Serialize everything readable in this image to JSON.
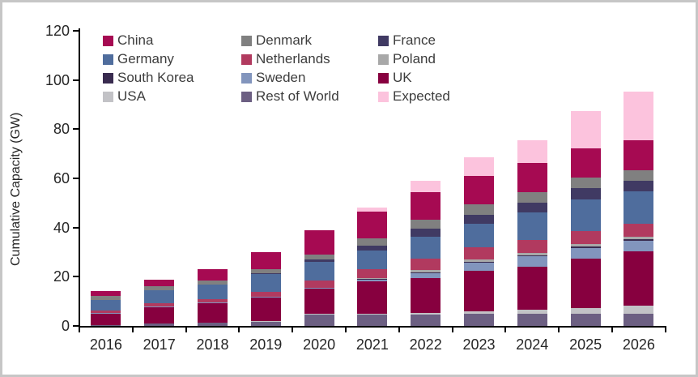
{
  "chart_data": {
    "type": "bar",
    "stacked": true,
    "title": "",
    "xlabel": "",
    "ylabel": "Cumulative Capacity (GW)",
    "ylim": [
      0,
      120
    ],
    "yticks": [
      0,
      20,
      40,
      60,
      80,
      100,
      120
    ],
    "grid": "off",
    "legend_position": "inside-top-left, 3 columns x 4 rows",
    "categories": [
      "2016",
      "2017",
      "2018",
      "2019",
      "2020",
      "2021",
      "2022",
      "2023",
      "2024",
      "2025",
      "2026"
    ],
    "series": [
      {
        "name": "China",
        "color": "#A60A52",
        "values": [
          2.0,
          2.8,
          4.6,
          7.0,
          10.0,
          11.0,
          11.2,
          11.4,
          12.0,
          12.0,
          12.0
        ]
      },
      {
        "name": "Denmark",
        "color": "#808080",
        "values": [
          1.5,
          1.5,
          1.6,
          1.7,
          2.0,
          2.8,
          3.8,
          4.3,
          4.3,
          4.3,
          4.3
        ]
      },
      {
        "name": "France",
        "color": "#403A63",
        "values": [
          0,
          0,
          0,
          0.3,
          0.8,
          2.0,
          3.3,
          3.7,
          4.0,
          4.5,
          4.5
        ]
      },
      {
        "name": "Germany",
        "color": "#4F6D9D",
        "values": [
          4.5,
          5.5,
          6.0,
          7.2,
          7.5,
          7.8,
          8.7,
          9.7,
          11.3,
          13.0,
          13.0
        ]
      },
      {
        "name": "Netherlands",
        "color": "#B13A5F",
        "values": [
          0.9,
          1.1,
          1.1,
          1.8,
          3.2,
          3.6,
          4.8,
          5.0,
          5.0,
          5.3,
          5.3
        ]
      },
      {
        "name": "Poland",
        "color": "#A8A8A8",
        "values": [
          0,
          0,
          0,
          0,
          0,
          0.3,
          0.8,
          1.0,
          1.0,
          1.0,
          1.0
        ]
      },
      {
        "name": "South Korea",
        "color": "#392B4F",
        "values": [
          0,
          0,
          0,
          0,
          0,
          0.1,
          0.2,
          0.3,
          0.5,
          0.6,
          0.7
        ]
      },
      {
        "name": "Sweden",
        "color": "#8295BD",
        "values": [
          0.2,
          0.2,
          0.2,
          0.2,
          0.2,
          1.0,
          2.2,
          3.3,
          4.3,
          4.3,
          4.3
        ]
      },
      {
        "name": "UK",
        "color": "#87003F",
        "values": [
          4.6,
          6.8,
          8.2,
          9.8,
          10.4,
          13.0,
          14.3,
          16.3,
          17.3,
          20.0,
          22.0
        ]
      },
      {
        "name": "USA",
        "color": "#C2C2C6",
        "values": [
          0,
          0,
          0,
          0.1,
          0.3,
          0.5,
          0.7,
          1.0,
          1.7,
          2.3,
          3.3
        ]
      },
      {
        "name": "Rest of World",
        "color": "#6C5F82",
        "values": [
          0.4,
          1.0,
          1.3,
          1.9,
          4.5,
          4.5,
          4.5,
          5.0,
          5.0,
          5.0,
          5.0
        ]
      },
      {
        "name": "Expected",
        "color": "#FCC3DD",
        "values": [
          0,
          0,
          0,
          0,
          0,
          1.5,
          4.5,
          7.7,
          9.0,
          15.0,
          20.0
        ]
      }
    ],
    "stack_order_bottom_to_top": [
      "Rest of World",
      "USA",
      "UK",
      "Sweden",
      "South Korea",
      "Poland",
      "Netherlands",
      "Germany",
      "France",
      "Denmark",
      "China",
      "Expected"
    ],
    "totals_by_year": [
      14.1,
      18.9,
      23.0,
      30.0,
      38.9,
      48.1,
      59.0,
      68.7,
      75.4,
      87.3,
      95.4
    ]
  }
}
